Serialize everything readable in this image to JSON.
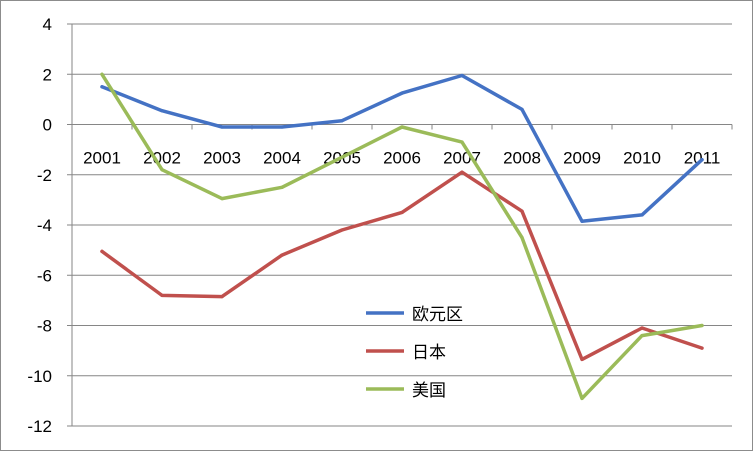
{
  "chart_data": {
    "type": "line",
    "title": "",
    "xlabel": "",
    "ylabel": "",
    "categories": [
      "2001",
      "2002",
      "2003",
      "2004",
      "2005",
      "2006",
      "2007",
      "2008",
      "2009",
      "2010",
      "2011"
    ],
    "ylim": [
      -12,
      4
    ],
    "yticks": [
      "4",
      "2",
      "0",
      "-2",
      "-4",
      "-6",
      "-8",
      "-10",
      "-12"
    ],
    "grid": true,
    "legend_position": "bottom-center",
    "series": [
      {
        "name": "欧元区",
        "color": "#4472c4",
        "values": [
          1.5,
          0.55,
          -0.1,
          -0.1,
          0.15,
          1.25,
          1.95,
          0.6,
          -3.85,
          -3.6,
          -1.4
        ]
      },
      {
        "name": "日本",
        "color": "#c0504d",
        "values": [
          -5.05,
          -6.8,
          -6.85,
          -5.2,
          -4.2,
          -3.5,
          -1.9,
          -3.45,
          -9.35,
          -8.1,
          -8.9
        ]
      },
      {
        "name": "美国",
        "color": "#9bbb59",
        "values": [
          2.0,
          -1.8,
          -2.95,
          -2.5,
          -1.3,
          -0.1,
          -0.7,
          -4.5,
          -10.9,
          -8.4,
          -8.0
        ]
      }
    ]
  }
}
